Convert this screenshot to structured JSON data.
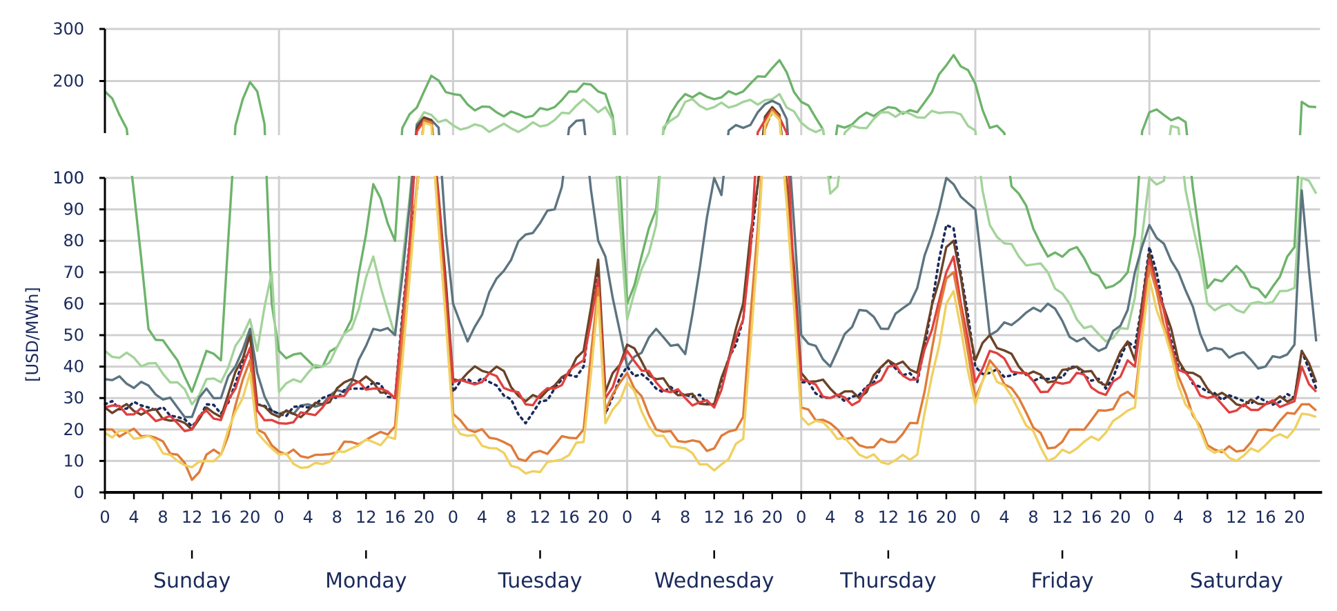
{
  "chart_data": {
    "type": "line",
    "ylabel": "[USD/MWh]",
    "broken_axis": true,
    "upper_panel": {
      "ylim": [
        100,
        300
      ],
      "ticks": [
        100,
        200,
        300
      ]
    },
    "lower_panel": {
      "ylim": [
        0,
        100
      ],
      "ticks": [
        0,
        10,
        20,
        30,
        40,
        50,
        60,
        70,
        80,
        90,
        100
      ]
    },
    "x_hour_ticks": [
      "0",
      "4",
      "8",
      "12",
      "16",
      "20"
    ],
    "days": [
      "Sunday",
      "Monday",
      "Tuesday",
      "Wednesday",
      "Thursday",
      "Friday",
      "Saturday"
    ],
    "grid": true,
    "anchor_hours": [
      0,
      6,
      10,
      12,
      14,
      16,
      20,
      21,
      23,
      24,
      28,
      30,
      34,
      37,
      40,
      44,
      45,
      48,
      50,
      54,
      58,
      62,
      66,
      68,
      69,
      72,
      76,
      80,
      84,
      88,
      92,
      93,
      96,
      100,
      104,
      108,
      112,
      116,
      117,
      120,
      122,
      126,
      130,
      134,
      138,
      141,
      142,
      144,
      148,
      152,
      156,
      160,
      164,
      165,
      167
    ],
    "series": [
      {
        "color": "#6db36a",
        "dash": false,
        "values": [
          180,
          52,
          42,
          32,
          45,
          42,
          198,
          180,
          60,
          45,
          42,
          40,
          55,
          98,
          80,
          180,
          210,
          175,
          155,
          140,
          130,
          150,
          195,
          180,
          175,
          60,
          90,
          175,
          165,
          180,
          225,
          240,
          160,
          100,
          130,
          150,
          140,
          230,
          250,
          195,
          110,
          95,
          75,
          78,
          65,
          70,
          82,
          140,
          130,
          65,
          72,
          62,
          78,
          160,
          150
        ]
      },
      {
        "color": "#a3d39a",
        "dash": false,
        "values": [
          45,
          41,
          35,
          28,
          36,
          35,
          55,
          45,
          70,
          32,
          38,
          40,
          52,
          75,
          50,
          140,
          135,
          115,
          110,
          110,
          110,
          125,
          165,
          140,
          150,
          55,
          85,
          160,
          150,
          160,
          165,
          175,
          120,
          95,
          110,
          140,
          130,
          140,
          140,
          105,
          85,
          75,
          70,
          55,
          48,
          52,
          62,
          100,
          110,
          60,
          58,
          60,
          65,
          100,
          95
        ]
      },
      {
        "color": "#5c7480",
        "dash": false,
        "values": [
          36,
          34,
          27,
          24,
          33,
          30,
          52,
          38,
          26,
          25,
          28,
          28,
          35,
          52,
          50,
          130,
          125,
          60,
          48,
          68,
          82,
          90,
          125,
          80,
          75,
          40,
          52,
          44,
          100,
          110,
          162,
          155,
          50,
          40,
          58,
          52,
          65,
          100,
          98,
          90,
          50,
          55,
          60,
          48,
          46,
          58,
          70,
          85,
          70,
          45,
          44,
          40,
          47,
          96,
          48
        ]
      },
      {
        "color": "#1a2a5c",
        "dash": true,
        "values": [
          28,
          27,
          24,
          21,
          28,
          25,
          45,
          28,
          26,
          25,
          27,
          30,
          33,
          35,
          30,
          128,
          125,
          32,
          36,
          34,
          22,
          33,
          40,
          72,
          25,
          40,
          33,
          31,
          28,
          55,
          140,
          130,
          35,
          30,
          31,
          42,
          35,
          85,
          84,
          40,
          38,
          38,
          36,
          40,
          33,
          48,
          46,
          78,
          40,
          32,
          30,
          29,
          30,
          45,
          33
        ]
      },
      {
        "color": "#6b4226",
        "dash": false,
        "values": [
          27,
          26,
          23,
          20,
          27,
          24,
          50,
          28,
          25,
          24,
          26,
          28,
          36,
          35,
          30,
          130,
          125,
          36,
          38,
          40,
          29,
          34,
          45,
          74,
          32,
          47,
          36,
          31,
          28,
          60,
          150,
          135,
          38,
          33,
          30,
          42,
          38,
          78,
          80,
          42,
          50,
          40,
          35,
          40,
          34,
          48,
          42,
          76,
          42,
          33,
          28,
          28,
          30,
          45,
          35
        ]
      },
      {
        "color": "#e04040",
        "dash": false,
        "values": [
          27,
          25,
          22,
          20,
          26,
          23,
          46,
          26,
          23,
          22,
          25,
          27,
          34,
          33,
          30,
          125,
          120,
          35,
          35,
          37,
          28,
          33,
          42,
          68,
          30,
          45,
          35,
          30,
          27,
          55,
          145,
          130,
          36,
          30,
          29,
          40,
          36,
          70,
          75,
          35,
          45,
          38,
          32,
          38,
          31,
          42,
          40,
          74,
          39,
          30,
          26,
          28,
          29,
          40,
          32
        ]
      },
      {
        "color": "#e07b39",
        "dash": false,
        "values": [
          20,
          18,
          12,
          4,
          12,
          12,
          42,
          20,
          15,
          13,
          11,
          12,
          16,
          18,
          21,
          125,
          120,
          25,
          20,
          17,
          10,
          15,
          20,
          65,
          26,
          38,
          20,
          16,
          14,
          24,
          145,
          130,
          27,
          22,
          15,
          16,
          22,
          68,
          70,
          30,
          42,
          30,
          14,
          20,
          26,
          32,
          30,
          72,
          37,
          15,
          13,
          20,
          25,
          28,
          26
        ]
      },
      {
        "color": "#f0d060",
        "dash": false,
        "values": [
          19,
          18,
          10,
          8,
          10,
          12,
          38,
          19,
          14,
          12,
          8,
          9,
          14,
          16,
          17,
          120,
          115,
          22,
          18,
          14,
          6,
          10,
          16,
          62,
          22,
          35,
          18,
          14,
          7,
          17,
          140,
          125,
          24,
          20,
          12,
          9,
          12,
          60,
          64,
          28,
          40,
          26,
          10,
          14,
          19,
          26,
          27,
          68,
          34,
          14,
          10,
          15,
          20,
          25,
          24
        ]
      }
    ]
  }
}
